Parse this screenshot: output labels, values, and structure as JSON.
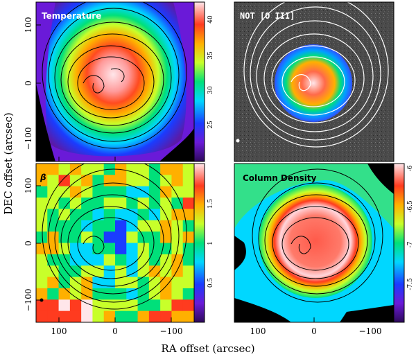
{
  "chart_data": [
    {
      "type": "heatmap",
      "title": "Temperature",
      "xlabel": "RA offset (arcsec)",
      "ylabel": "DEC offset (arcsec)",
      "xlim": [
        130,
        -130
      ],
      "ylim": [
        -130,
        130
      ],
      "xticks": [
        100,
        0,
        -100
      ],
      "yticks": [
        100,
        0,
        -100
      ],
      "colorbar": {
        "ticks": [
          25,
          30,
          35,
          40
        ],
        "range": [
          20,
          42
        ]
      },
      "contours": true,
      "colormap": [
        "#2d0a5a",
        "#1a3cff",
        "#00d7ff",
        "#00e07a",
        "#c8ff2a",
        "#ffb000",
        "#ff3b1f",
        "#ffe6ea"
      ]
    },
    {
      "type": "heatmap",
      "title": "NOT [O III]",
      "contours": true,
      "contour_color": "#ffffff",
      "colormap": [
        "#3a3a3a",
        "#1a3cff",
        "#00d7ff",
        "#00e07a",
        "#ffb000",
        "#ff3b1f",
        "#ffe6ea"
      ]
    },
    {
      "type": "heatmap",
      "title": "β",
      "colorbar": {
        "ticks": [
          0.5,
          1,
          1.5
        ],
        "range": [
          0,
          2
        ]
      },
      "contours": true,
      "colormap": [
        "#2d0a5a",
        "#1a3cff",
        "#00d7ff",
        "#00e07a",
        "#c8ff2a",
        "#ffb000",
        "#ff3b1f",
        "#ffe6ea"
      ]
    },
    {
      "type": "heatmap",
      "title": "Column Density",
      "colorbar": {
        "ticks": [
          -6,
          -6.5,
          -7,
          -7.5
        ],
        "range": [
          -8,
          -5.9
        ]
      },
      "contours": true,
      "colormap": [
        "#2d0a5a",
        "#1a3cff",
        "#00d7ff",
        "#00e07a",
        "#c8ff2a",
        "#ffb000",
        "#ff3b1f",
        "#ffe6ea"
      ]
    }
  ],
  "labels": {
    "xlabel": "RA offset (arcsec)",
    "ylabel": "DEC offset (arcsec)",
    "tick_100": "100",
    "tick_0": "0",
    "tick_m100": "−100",
    "temp_cb": [
      "25",
      "30",
      "35",
      "40"
    ],
    "beta_cb": [
      "0.5",
      "1",
      "1.5"
    ],
    "col_cb": [
      "-6",
      "-6.5",
      "-7",
      "-7.5"
    ]
  },
  "panel_titles": {
    "temperature": "Temperature",
    "oiii": "NOT [O III]",
    "beta": "β",
    "column_density": "Column Density"
  }
}
